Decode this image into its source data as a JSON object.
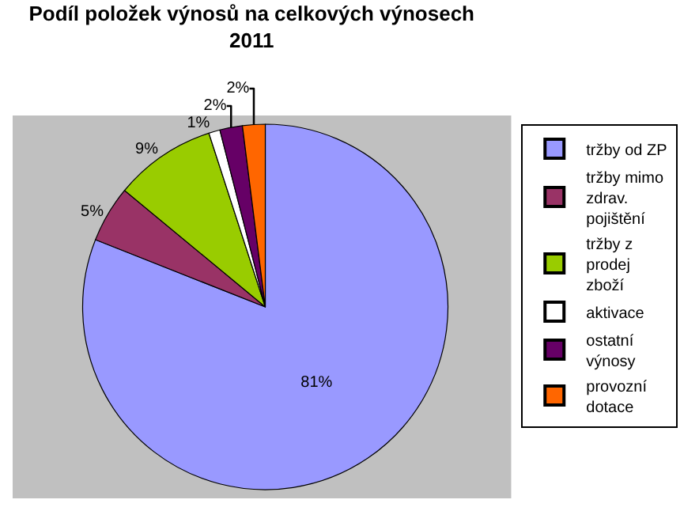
{
  "chart_data": {
    "type": "pie",
    "title": "Podíl položek výnosů na celkových výnosech\n2011",
    "categories": [
      "tržby od ZP",
      "tržby mimo zdrav. pojištění",
      "tržby z prodej zboží",
      "aktivace",
      "ostatní výnosy",
      "provozní dotace"
    ],
    "values": [
      81,
      5,
      9,
      1,
      2,
      2
    ],
    "colors": [
      "#9999ff",
      "#993366",
      "#99cc00",
      "#ffffff",
      "#660066",
      "#ff6600"
    ],
    "value_labels": [
      "81%",
      "5%",
      "9%",
      "1%",
      "2%",
      "2%"
    ],
    "legend": "right"
  }
}
